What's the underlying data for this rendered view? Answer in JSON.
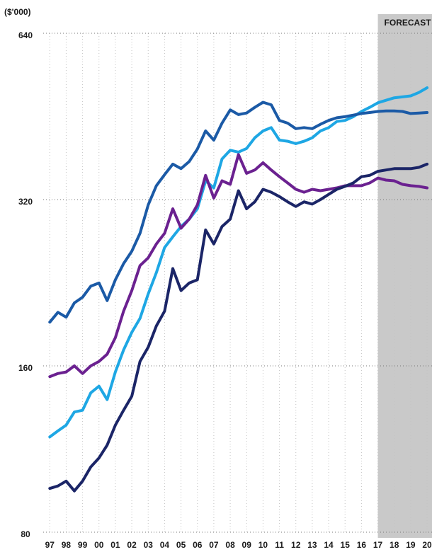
{
  "chart_data": {
    "type": "line",
    "y_label": "($'000)",
    "annotation": "FORECAST",
    "forecast_from": 2017,
    "log_scale": true,
    "grid": true,
    "x": [
      1997,
      1997.5,
      1998,
      1998.5,
      1999,
      1999.5,
      2000,
      2000.5,
      2001,
      2001.5,
      2002,
      2002.5,
      2003,
      2003.5,
      2004,
      2004.5,
      2005,
      2005.5,
      2006,
      2006.5,
      2007,
      2007.5,
      2008,
      2008.5,
      2009,
      2009.5,
      2010,
      2010.5,
      2011,
      2011.5,
      2012,
      2012.5,
      2013,
      2013.5,
      2014,
      2014.5,
      2015,
      2015.5,
      2016,
      2016.5,
      2017,
      2017.5,
      2018,
      2018.5,
      2019,
      2019.5,
      2020
    ],
    "series": [
      {
        "color": "#1ea7e4",
        "values": [
          119,
          122,
          125,
          132,
          133,
          143,
          147,
          139,
          156,
          171,
          184,
          195,
          216,
          236,
          262,
          274,
          286,
          295,
          308,
          346,
          336,
          379,
          393,
          390,
          396,
          414,
          426,
          432,
          410,
          408,
          404,
          408,
          414,
          426,
          432,
          443,
          445,
          452,
          462,
          470,
          479,
          484,
          489,
          491,
          493,
          500,
          510
        ]
      },
      {
        "color": "#1b5aa6",
        "values": [
          192,
          200,
          196,
          208,
          213,
          223,
          226,
          210,
          229,
          245,
          258,
          278,
          313,
          339,
          355,
          371,
          364,
          375,
          395,
          426,
          410,
          440,
          465,
          456,
          459,
          470,
          480,
          475,
          445,
          440,
          430,
          432,
          430,
          438,
          445,
          450,
          452,
          455,
          458,
          460,
          462,
          463,
          463,
          462,
          458,
          459,
          460
        ]
      },
      {
        "color": "#6b2190",
        "values": [
          153,
          155,
          156,
          160,
          155,
          160,
          163,
          168,
          180,
          201,
          219,
          243,
          251,
          266,
          278,
          308,
          284,
          295,
          313,
          354,
          322,
          346,
          341,
          386,
          357,
          362,
          373,
          362,
          352,
          343,
          334,
          330,
          334,
          332,
          334,
          336,
          339,
          339,
          339,
          343,
          350,
          347,
          346,
          341,
          339,
          338,
          336
        ]
      },
      {
        "color": "#1b2567",
        "values": [
          96,
          97,
          99,
          95,
          99,
          105,
          109,
          115,
          125,
          133,
          141,
          163,
          173,
          189,
          201,
          240,
          219,
          226,
          229,
          282,
          266,
          286,
          295,
          332,
          308,
          317,
          334,
          330,
          324,
          317,
          311,
          317,
          314,
          320,
          327,
          334,
          338,
          343,
          352,
          354,
          360,
          362,
          364,
          364,
          364,
          366,
          371
        ]
      }
    ],
    "xlim": [
      1996.6,
      2020.3
    ],
    "xticks": [
      {
        "value": 1997,
        "label": "97"
      },
      {
        "value": 1998,
        "label": "98"
      },
      {
        "value": 1999,
        "label": "99"
      },
      {
        "value": 2000,
        "label": "00"
      },
      {
        "value": 2001,
        "label": "01"
      },
      {
        "value": 2002,
        "label": "02"
      },
      {
        "value": 2003,
        "label": "03"
      },
      {
        "value": 2004,
        "label": "04"
      },
      {
        "value": 2005,
        "label": "05"
      },
      {
        "value": 2006,
        "label": "06"
      },
      {
        "value": 2007,
        "label": "07"
      },
      {
        "value": 2008,
        "label": "08"
      },
      {
        "value": 2009,
        "label": "09"
      },
      {
        "value": 2010,
        "label": "10"
      },
      {
        "value": 2011,
        "label": "11"
      },
      {
        "value": 2012,
        "label": "12"
      },
      {
        "value": 2013,
        "label": "13"
      },
      {
        "value": 2014,
        "label": "14"
      },
      {
        "value": 2015,
        "label": "15"
      },
      {
        "value": 2016,
        "label": "16"
      },
      {
        "value": 2017,
        "label": "17"
      },
      {
        "value": 2018,
        "label": "18"
      },
      {
        "value": 2019,
        "label": "19"
      },
      {
        "value": 2020,
        "label": "20"
      }
    ],
    "ylim": [
      80,
      640
    ],
    "yticks": [
      80,
      160,
      320,
      640
    ]
  }
}
